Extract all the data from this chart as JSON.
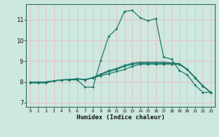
{
  "title": "",
  "xlabel": "Humidex (Indice chaleur)",
  "bg_color": "#cce8e0",
  "grid_color": "#e8c0c0",
  "line_color": "#1a7868",
  "xlim": [
    -0.5,
    23.5
  ],
  "ylim": [
    6.8,
    11.75
  ],
  "xticks": [
    0,
    1,
    2,
    3,
    4,
    5,
    6,
    7,
    8,
    9,
    10,
    11,
    12,
    13,
    14,
    15,
    16,
    17,
    18,
    19,
    20,
    21,
    22,
    23
  ],
  "yticks": [
    7,
    8,
    9,
    10,
    11
  ],
  "lines": [
    {
      "x": [
        0,
        1,
        2,
        3,
        4,
        5,
        6,
        7,
        8,
        9,
        10,
        11,
        12,
        13,
        14,
        15,
        16,
        17,
        18,
        19,
        20,
        21,
        22,
        23
      ],
      "y": [
        7.95,
        7.95,
        7.95,
        8.05,
        8.1,
        8.1,
        8.1,
        7.75,
        7.75,
        9.05,
        10.2,
        10.55,
        11.4,
        11.45,
        11.1,
        10.95,
        11.05,
        9.2,
        9.1,
        8.55,
        8.35,
        7.85,
        7.5,
        7.5
      ]
    },
    {
      "x": [
        0,
        1,
        2,
        3,
        4,
        5,
        6,
        7,
        8,
        9,
        10,
        11,
        12,
        13,
        14,
        15,
        16,
        17,
        18,
        19,
        20,
        21,
        22,
        23
      ],
      "y": [
        8.0,
        8.0,
        8.0,
        8.05,
        8.1,
        8.1,
        8.15,
        8.1,
        8.2,
        8.3,
        8.4,
        8.5,
        8.6,
        8.75,
        8.85,
        8.85,
        8.85,
        8.85,
        8.85,
        8.85,
        8.6,
        8.2,
        7.8,
        7.5
      ]
    },
    {
      "x": [
        0,
        1,
        2,
        3,
        4,
        5,
        6,
        7,
        8,
        9,
        10,
        11,
        12,
        13,
        14,
        15,
        16,
        17,
        18,
        19,
        20,
        21,
        22,
        23
      ],
      "y": [
        8.0,
        8.0,
        8.0,
        8.05,
        8.1,
        8.12,
        8.15,
        8.1,
        8.2,
        8.35,
        8.5,
        8.6,
        8.75,
        8.85,
        8.9,
        8.9,
        8.9,
        8.9,
        8.9,
        8.85,
        8.6,
        8.2,
        7.8,
        7.5
      ]
    },
    {
      "x": [
        0,
        1,
        2,
        3,
        4,
        5,
        6,
        7,
        8,
        9,
        10,
        11,
        12,
        13,
        14,
        15,
        16,
        17,
        18,
        19,
        20,
        21,
        22,
        23
      ],
      "y": [
        8.0,
        8.0,
        8.0,
        8.05,
        8.1,
        8.12,
        8.15,
        8.12,
        8.22,
        8.38,
        8.55,
        8.65,
        8.8,
        8.9,
        8.95,
        8.95,
        8.95,
        8.95,
        8.92,
        8.88,
        8.62,
        8.22,
        7.82,
        7.5
      ]
    }
  ]
}
